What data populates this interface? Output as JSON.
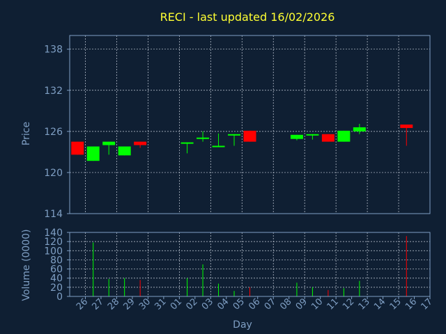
{
  "colors": {
    "background": "#0f1f33",
    "axis": "#7f9fc4",
    "grid": "#c8d0dc",
    "up": "#00ff00",
    "down": "#ff0000",
    "title": "#ffff33"
  },
  "chart_data": [
    {
      "type": "candlestick",
      "title": "RECI - last updated 16/02/2026",
      "xlabel": "",
      "ylabel": "Price",
      "ylim": [
        114,
        140
      ],
      "yticks": [
        138,
        132,
        126,
        120,
        114
      ],
      "grid": true,
      "categories": [
        "26",
        "27",
        "28",
        "29",
        "30",
        "31",
        "01",
        "02",
        "03",
        "04",
        "05",
        "06",
        "07",
        "08",
        "09",
        "10",
        "11",
        "12",
        "13",
        "14",
        "15",
        "16",
        "17"
      ],
      "candles": [
        {
          "day": "26",
          "open": 124.5,
          "close": 122.6,
          "high": 124.5,
          "low": 122.6
        },
        {
          "day": "27",
          "open": 121.7,
          "close": 123.8,
          "high": 123.8,
          "low": 121.7
        },
        {
          "day": "28",
          "open": 124.0,
          "close": 124.5,
          "high": 124.5,
          "low": 122.6
        },
        {
          "day": "29",
          "open": 122.5,
          "close": 123.8,
          "high": 123.8,
          "low": 122.5
        },
        {
          "day": "30",
          "open": 124.5,
          "close": 124.0,
          "high": 124.5,
          "low": 123.6
        },
        {
          "day": "02",
          "open": 124.3,
          "close": 124.4,
          "high": 124.4,
          "low": 122.8
        },
        {
          "day": "03",
          "open": 124.9,
          "close": 125.1,
          "high": 126.0,
          "low": 124.5
        },
        {
          "day": "04",
          "open": 123.8,
          "close": 123.9,
          "high": 125.7,
          "low": 123.8
        },
        {
          "day": "05",
          "open": 125.4,
          "close": 125.6,
          "high": 125.6,
          "low": 123.9
        },
        {
          "day": "06",
          "open": 126.1,
          "close": 124.5,
          "high": 126.1,
          "low": 124.5
        },
        {
          "day": "09",
          "open": 124.9,
          "close": 125.5,
          "high": 125.5,
          "low": 124.7
        },
        {
          "day": "10",
          "open": 125.5,
          "close": 125.6,
          "high": 125.6,
          "low": 124.8
        },
        {
          "day": "11",
          "open": 125.6,
          "close": 124.5,
          "high": 125.6,
          "low": 124.5
        },
        {
          "day": "12",
          "open": 124.5,
          "close": 126.1,
          "high": 126.1,
          "low": 124.5
        },
        {
          "day": "13",
          "open": 126.0,
          "close": 126.6,
          "high": 127.1,
          "low": 125.6
        },
        {
          "day": "16",
          "open": 127.0,
          "close": 126.5,
          "high": 127.0,
          "low": 123.9
        }
      ]
    },
    {
      "type": "bar",
      "xlabel": "Day",
      "ylabel": "Volume (0000)",
      "ylim": [
        0,
        140
      ],
      "yticks": [
        140,
        120,
        100,
        80,
        60,
        40,
        20,
        0
      ],
      "grid": true,
      "categories": [
        "26",
        "27",
        "28",
        "29",
        "30",
        "31",
        "01",
        "02",
        "03",
        "04",
        "05",
        "06",
        "07",
        "08",
        "09",
        "10",
        "11",
        "12",
        "13",
        "14",
        "15",
        "16",
        "17"
      ],
      "bars": [
        {
          "day": "27",
          "value": 118,
          "dir": "up"
        },
        {
          "day": "28",
          "value": 38,
          "dir": "up"
        },
        {
          "day": "29",
          "value": 40,
          "dir": "up"
        },
        {
          "day": "30",
          "value": 36,
          "dir": "down"
        },
        {
          "day": "02",
          "value": 40,
          "dir": "up"
        },
        {
          "day": "03",
          "value": 70,
          "dir": "up"
        },
        {
          "day": "04",
          "value": 28,
          "dir": "up"
        },
        {
          "day": "05",
          "value": 12,
          "dir": "up"
        },
        {
          "day": "06",
          "value": 20,
          "dir": "down"
        },
        {
          "day": "09",
          "value": 30,
          "dir": "up"
        },
        {
          "day": "10",
          "value": 20,
          "dir": "up"
        },
        {
          "day": "11",
          "value": 14,
          "dir": "down"
        },
        {
          "day": "12",
          "value": 18,
          "dir": "up"
        },
        {
          "day": "13",
          "value": 34,
          "dir": "up"
        },
        {
          "day": "16",
          "value": 132,
          "dir": "down"
        }
      ]
    }
  ]
}
